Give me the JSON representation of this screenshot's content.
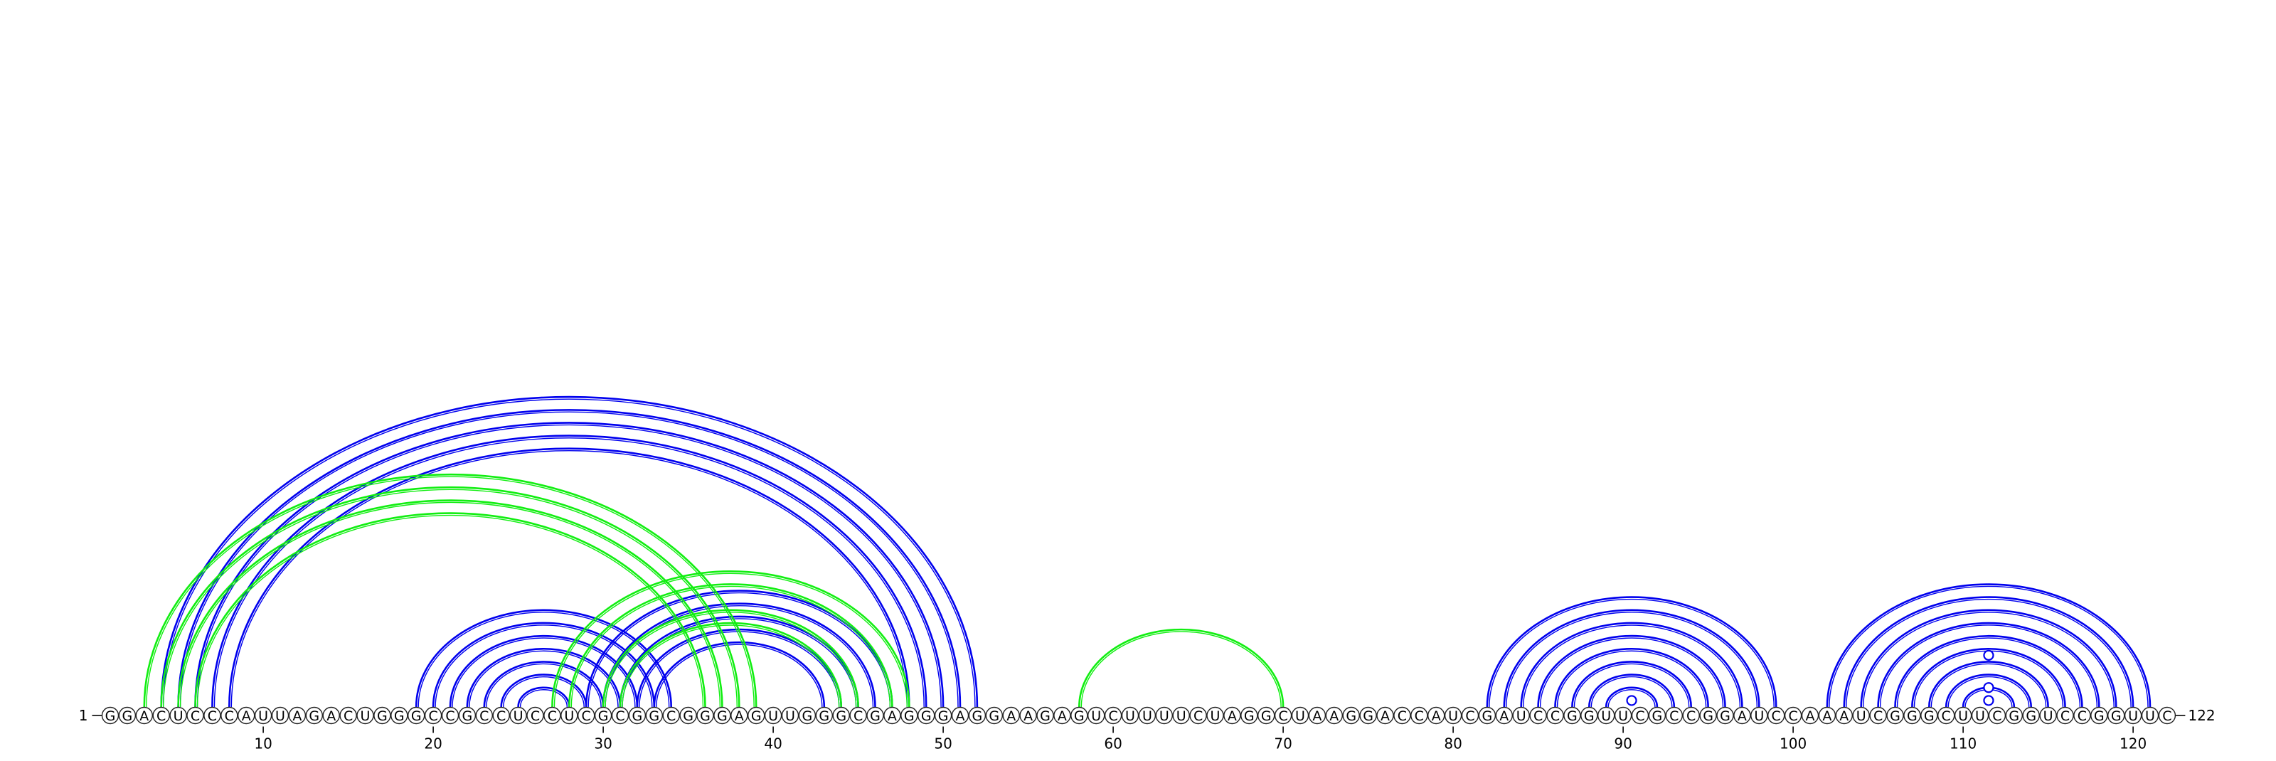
{
  "diagram": {
    "sequence": "GGACUCCCAUUAGACUGGGCCGCCUCCUCGCGGCGGGAGUUGGGCGAGGGAGGAAGAGUCUUUUCUAGGCUAAGGACCAUCGAUCCGGUUCGCCGGAUCCAAAUCGGGCUUCGGUCCGGUUC",
    "start_label": "1",
    "end_label": "122",
    "ticks": [
      10,
      20,
      30,
      40,
      50,
      60,
      70,
      80,
      90,
      100,
      110,
      120
    ],
    "colors": {
      "primary": "#0000ee",
      "secondary": "#11ee11"
    },
    "arc_groups": [
      {
        "color": "primary",
        "pairs": [
          [
            4,
            52
          ],
          [
            5,
            51
          ],
          [
            6,
            50
          ],
          [
            7,
            49
          ],
          [
            8,
            48
          ]
        ]
      },
      {
        "color": "primary",
        "pairs": [
          [
            19,
            34
          ],
          [
            20,
            33
          ],
          [
            21,
            32
          ],
          [
            22,
            31
          ],
          [
            23,
            30
          ],
          [
            24,
            29
          ],
          [
            25,
            28
          ]
        ]
      },
      {
        "color": "primary",
        "pairs": [
          [
            29,
            47
          ],
          [
            30,
            46
          ],
          [
            31,
            45
          ],
          [
            32,
            44
          ],
          [
            33,
            43
          ]
        ]
      },
      {
        "color": "primary",
        "pairs": [
          [
            82,
            99
          ],
          [
            83,
            98
          ],
          [
            84,
            97
          ],
          [
            85,
            96
          ],
          [
            86,
            95
          ],
          [
            87,
            94
          ],
          [
            88,
            93
          ],
          [
            89,
            92
          ]
        ]
      },
      {
        "color": "primary",
        "pairs": [
          [
            102,
            121
          ],
          [
            103,
            120
          ],
          [
            104,
            119
          ],
          [
            105,
            118
          ],
          [
            106,
            117
          ],
          [
            107,
            116
          ],
          [
            108,
            115
          ],
          [
            109,
            114
          ],
          [
            110,
            113
          ]
        ]
      },
      {
        "color": "secondary",
        "pairs": [
          [
            3,
            39
          ],
          [
            4,
            38
          ],
          [
            5,
            37
          ],
          [
            6,
            36
          ]
        ]
      },
      {
        "color": "secondary",
        "pairs": [
          [
            27,
            48
          ],
          [
            28,
            47
          ]
        ]
      },
      {
        "color": "secondary",
        "pairs": [
          [
            30,
            45
          ],
          [
            31,
            44
          ]
        ]
      },
      {
        "color": "secondary",
        "pairs": [
          [
            58,
            70
          ]
        ]
      }
    ],
    "markers": [
      {
        "pos": 90.5,
        "pair_span": 1
      },
      {
        "pos": 111.5,
        "pair_span": 1
      },
      {
        "pos": 111.5,
        "pair_span": 3
      },
      {
        "pos": 111.5,
        "pair_span": 8
      }
    ]
  }
}
